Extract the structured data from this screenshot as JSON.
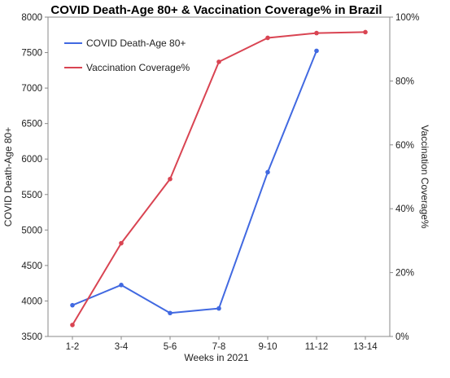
{
  "chart_data": {
    "type": "line",
    "title": "COVID Death-Age 80+ & Vaccination Coverage% in Brazil",
    "xlabel": "Weeks in 2021",
    "ylabel_left": "COVID Death-Age 80+",
    "ylabel_right": "Vaccination Coverage%",
    "categories": [
      "1-2",
      "3-4",
      "5-6",
      "7-8",
      "9-10",
      "11-12",
      "13-14"
    ],
    "ylim_left": [
      3500,
      8000
    ],
    "yticks_left": [
      "3500",
      "4000",
      "4500",
      "5000",
      "5500",
      "6000",
      "6500",
      "7000",
      "7500",
      "8000"
    ],
    "ylim_right": [
      0,
      100
    ],
    "yticks_right": [
      "0%",
      "20%",
      "40%",
      "60%",
      "80%",
      "100%"
    ],
    "legend_position": "top-left",
    "grid": false,
    "series": [
      {
        "name": "COVID Death-Age 80+",
        "axis": "left",
        "color": "#4169e1",
        "values": [
          3940,
          4225,
          3830,
          3895,
          5815,
          7525,
          null
        ]
      },
      {
        "name": "Vaccination Coverage%",
        "axis": "right",
        "color": "#d94452",
        "values": [
          3.6,
          29.2,
          49.3,
          86.0,
          93.5,
          95.0,
          95.3
        ]
      }
    ]
  }
}
